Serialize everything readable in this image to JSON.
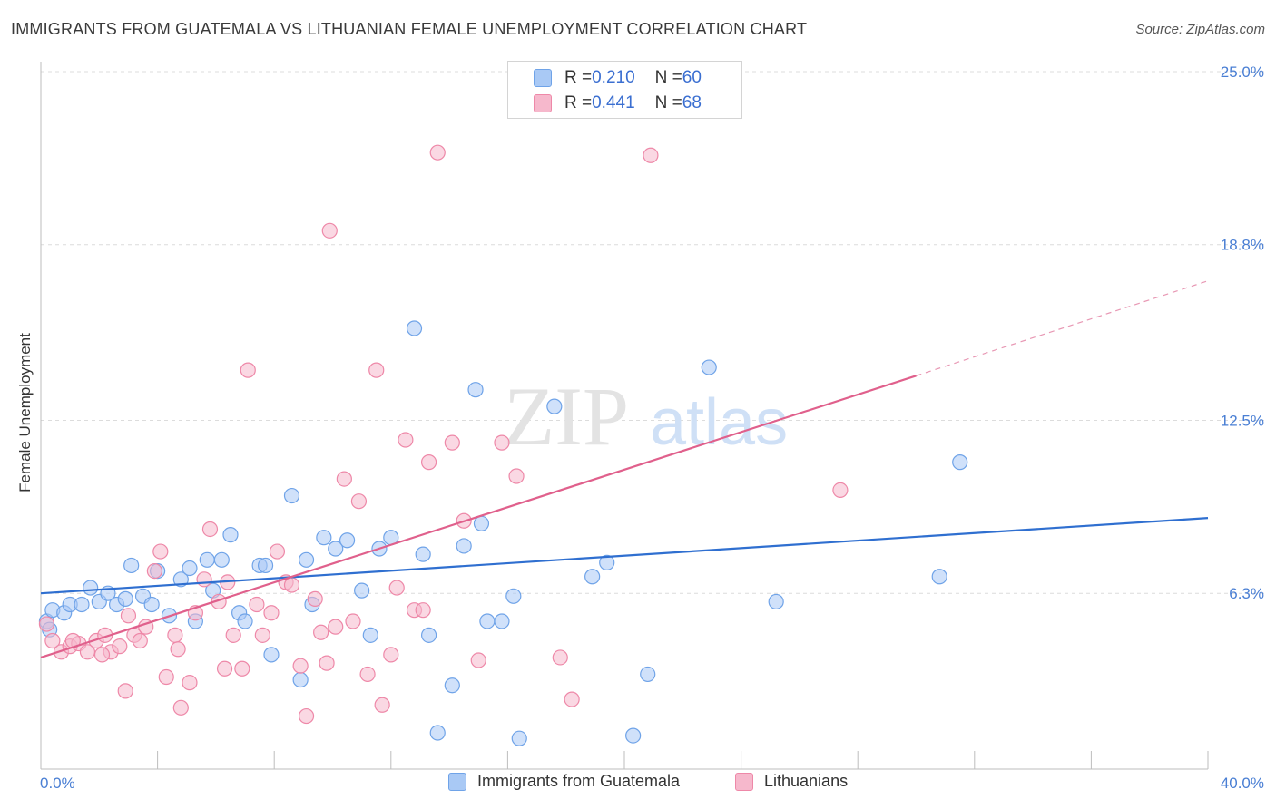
{
  "header": {
    "title": "IMMIGRANTS FROM GUATEMALA VS LITHUANIAN FEMALE UNEMPLOYMENT CORRELATION CHART",
    "source": "Source: ZipAtlas.com"
  },
  "watermark": {
    "zip": "ZIP",
    "atlas": "atlas"
  },
  "legend": {
    "rows": [
      {
        "r_label": "R = ",
        "r_value": "0.210",
        "n_label": "N = ",
        "n_value": "60",
        "color": "#a9c9f5"
      },
      {
        "r_label": "R = ",
        "r_value": "0.441",
        "n_label": "N = ",
        "n_value": "68",
        "color": "#f6b8cc"
      }
    ]
  },
  "chart_data": {
    "type": "scatter",
    "title": "IMMIGRANTS FROM GUATEMALA VS LITHUANIAN FEMALE UNEMPLOYMENT CORRELATION CHART",
    "xlabel": "",
    "ylabel": "Female Unemployment",
    "xlim": [
      0,
      40
    ],
    "ylim": [
      0,
      25.0
    ],
    "x_tick_labels": [
      "0.0%",
      "40.0%"
    ],
    "y_ticks": [
      6.3,
      12.5,
      18.8,
      25.0
    ],
    "y_tick_labels": [
      "6.3%",
      "12.5%",
      "18.8%",
      "25.0%"
    ],
    "grid": "horizontal dashed",
    "legend_placement": "top-center",
    "series": [
      {
        "name": "Immigrants from Guatemala",
        "color": "#6fa3e8",
        "fill": "#a9c9f5",
        "trend": {
          "x0": 0,
          "y0": 6.3,
          "x1": 40,
          "y1": 9.0,
          "dashed_from": null
        },
        "points": [
          [
            0.2,
            5.3
          ],
          [
            0.4,
            5.7
          ],
          [
            0.8,
            5.6
          ],
          [
            1.0,
            5.9
          ],
          [
            1.4,
            5.9
          ],
          [
            1.7,
            6.5
          ],
          [
            2.0,
            6.0
          ],
          [
            2.3,
            6.3
          ],
          [
            2.6,
            5.9
          ],
          [
            2.9,
            6.1
          ],
          [
            3.1,
            7.3
          ],
          [
            3.5,
            6.2
          ],
          [
            3.8,
            5.9
          ],
          [
            4.0,
            7.1
          ],
          [
            4.4,
            5.5
          ],
          [
            4.8,
            6.8
          ],
          [
            5.1,
            7.2
          ],
          [
            5.3,
            5.3
          ],
          [
            5.7,
            7.5
          ],
          [
            5.9,
            6.4
          ],
          [
            6.2,
            7.5
          ],
          [
            6.5,
            8.4
          ],
          [
            6.8,
            5.6
          ],
          [
            7.0,
            5.3
          ],
          [
            7.5,
            7.3
          ],
          [
            7.7,
            7.3
          ],
          [
            7.9,
            4.1
          ],
          [
            8.6,
            9.8
          ],
          [
            8.9,
            3.2
          ],
          [
            9.1,
            7.5
          ],
          [
            9.3,
            5.9
          ],
          [
            9.7,
            8.3
          ],
          [
            10.1,
            7.9
          ],
          [
            10.5,
            8.2
          ],
          [
            11.0,
            6.4
          ],
          [
            11.3,
            4.8
          ],
          [
            11.6,
            7.9
          ],
          [
            12.0,
            8.3
          ],
          [
            12.8,
            15.8
          ],
          [
            13.1,
            7.7
          ],
          [
            13.3,
            4.8
          ],
          [
            13.6,
            1.3
          ],
          [
            14.1,
            3.0
          ],
          [
            14.5,
            8.0
          ],
          [
            14.9,
            13.6
          ],
          [
            15.1,
            8.8
          ],
          [
            15.3,
            5.3
          ],
          [
            15.8,
            5.3
          ],
          [
            16.2,
            6.2
          ],
          [
            16.4,
            1.1
          ],
          [
            17.6,
            13.0
          ],
          [
            18.9,
            6.9
          ],
          [
            19.4,
            7.4
          ],
          [
            20.3,
            1.2
          ],
          [
            20.8,
            3.4
          ],
          [
            22.9,
            14.4
          ],
          [
            25.2,
            6.0
          ],
          [
            30.8,
            6.9
          ],
          [
            31.5,
            11.0
          ],
          [
            0.3,
            5.0
          ]
        ]
      },
      {
        "name": "Lithuanians",
        "color": "#ee88a8",
        "fill": "#f6b8cc",
        "trend": {
          "x0": 0,
          "y0": 4.0,
          "x1": 30.0,
          "y1": 14.1,
          "dashed_to": [
            40,
            17.5
          ]
        },
        "points": [
          [
            0.2,
            5.2
          ],
          [
            0.4,
            4.6
          ],
          [
            0.7,
            4.2
          ],
          [
            1.0,
            4.4
          ],
          [
            1.3,
            4.5
          ],
          [
            1.6,
            4.2
          ],
          [
            1.9,
            4.6
          ],
          [
            2.2,
            4.8
          ],
          [
            2.4,
            4.2
          ],
          [
            2.7,
            4.4
          ],
          [
            2.9,
            2.8
          ],
          [
            3.2,
            4.8
          ],
          [
            3.4,
            4.6
          ],
          [
            3.6,
            5.1
          ],
          [
            3.9,
            7.1
          ],
          [
            4.1,
            7.8
          ],
          [
            4.3,
            3.3
          ],
          [
            4.6,
            4.8
          ],
          [
            4.8,
            2.2
          ],
          [
            5.1,
            3.1
          ],
          [
            5.3,
            5.6
          ],
          [
            5.6,
            6.8
          ],
          [
            5.8,
            8.6
          ],
          [
            6.1,
            6.0
          ],
          [
            6.3,
            3.6
          ],
          [
            6.6,
            4.8
          ],
          [
            6.9,
            3.6
          ],
          [
            7.1,
            14.3
          ],
          [
            7.4,
            5.9
          ],
          [
            7.6,
            4.8
          ],
          [
            7.9,
            5.6
          ],
          [
            8.1,
            7.8
          ],
          [
            8.4,
            6.7
          ],
          [
            8.6,
            6.6
          ],
          [
            8.9,
            3.7
          ],
          [
            9.1,
            1.9
          ],
          [
            9.4,
            6.1
          ],
          [
            9.6,
            4.9
          ],
          [
            9.9,
            19.3
          ],
          [
            10.1,
            5.1
          ],
          [
            10.4,
            10.4
          ],
          [
            10.7,
            5.3
          ],
          [
            10.9,
            9.6
          ],
          [
            11.2,
            3.4
          ],
          [
            11.5,
            14.3
          ],
          [
            11.7,
            2.3
          ],
          [
            12.0,
            4.1
          ],
          [
            12.5,
            11.8
          ],
          [
            12.8,
            5.7
          ],
          [
            13.1,
            5.7
          ],
          [
            13.3,
            11.0
          ],
          [
            13.6,
            22.1
          ],
          [
            14.1,
            11.7
          ],
          [
            14.5,
            8.9
          ],
          [
            15.0,
            3.9
          ],
          [
            15.8,
            11.7
          ],
          [
            16.3,
            10.5
          ],
          [
            17.8,
            4.0
          ],
          [
            18.2,
            2.5
          ],
          [
            20.9,
            22.0
          ],
          [
            27.4,
            10.0
          ],
          [
            3.0,
            5.5
          ],
          [
            1.1,
            4.6
          ],
          [
            2.1,
            4.1
          ],
          [
            4.7,
            4.3
          ],
          [
            6.4,
            6.7
          ],
          [
            9.8,
            3.8
          ],
          [
            12.2,
            6.5
          ]
        ]
      }
    ]
  },
  "bottom_legend": {
    "items": [
      {
        "label": "Immigrants from Guatemala",
        "color": "#a9c9f5"
      },
      {
        "label": "Lithuanians",
        "color": "#f6b8cc"
      }
    ]
  }
}
